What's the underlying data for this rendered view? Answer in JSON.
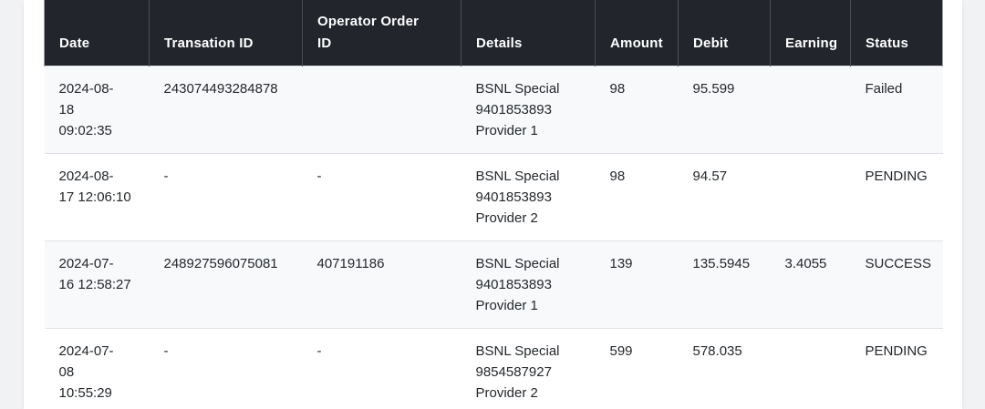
{
  "page": {
    "background_color": "#f1f2f4",
    "card_color": "#ffffff"
  },
  "table": {
    "header": {
      "background_color": "#22262c",
      "text_color": "#ffffff",
      "divider_color": "#4a4f55",
      "columns": [
        {
          "label": "Date"
        },
        {
          "label": "Transation ID"
        },
        {
          "label": "Operator Order ID",
          "wrap": [
            "Operator Order",
            "ID"
          ]
        },
        {
          "label": "Details"
        },
        {
          "label": "Amount"
        },
        {
          "label": "Debit"
        },
        {
          "label": "Earning"
        },
        {
          "label": "Status"
        }
      ]
    },
    "row_stripe_color": "#f8f9fb",
    "row_border_color": "#dee2e6",
    "body_text_color": "#23272b",
    "rows": [
      {
        "date": "2024-08-18 09:02:35",
        "date_lines": [
          "2024-08-",
          "18",
          "09:02:35"
        ],
        "transaction_id": "243074493284878",
        "operator_order_id": "",
        "details": "BSNL Special 9401853893 Provider 1",
        "amount": "98",
        "debit": "95.599",
        "earning": "",
        "status": "Failed"
      },
      {
        "date": "2024-08-17 12:06:10",
        "date_lines": [
          "2024-08-",
          "17 12:06:10"
        ],
        "transaction_id": "-",
        "operator_order_id": "-",
        "details": "BSNL Special 9401853893 Provider 2",
        "amount": "98",
        "debit": "94.57",
        "earning": "",
        "status": "PENDING"
      },
      {
        "date": "2024-07-16 12:58:27",
        "date_lines": [
          "2024-07-",
          "16 12:58:27"
        ],
        "transaction_id": "248927596075081",
        "operator_order_id": "407191186",
        "details": "BSNL Special 9401853893 Provider 1",
        "amount": "139",
        "debit": "135.5945",
        "earning": "3.4055",
        "status": "SUCCESS"
      },
      {
        "date": "2024-07-08 10:55:29",
        "date_lines": [
          "2024-07-",
          "08",
          "10:55:29"
        ],
        "transaction_id": "-",
        "operator_order_id": "-",
        "details": "BSNL Special 9854587927 Provider 2",
        "amount": "599",
        "debit": "578.035",
        "earning": "",
        "status": "PENDING"
      }
    ]
  }
}
